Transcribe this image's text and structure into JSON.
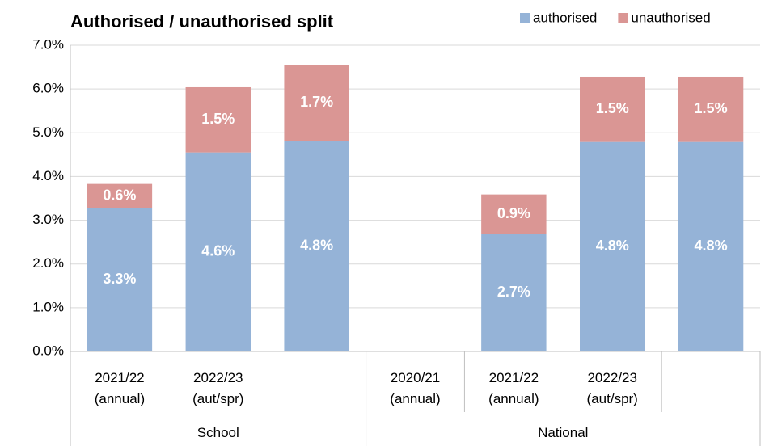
{
  "chart_data": {
    "type": "stacked_bar",
    "title": "Authorised / unauthorised split",
    "categories": [
      "2021/22\n(annual)",
      "2022/23\n(aut/spr)",
      null,
      "2020/21\n(annual)",
      "2021/22\n(annual)",
      "2022/23\n(aut/spr)",
      null
    ],
    "groups": [
      {
        "name": "School",
        "span": 3
      },
      {
        "name": "National",
        "span": 4
      }
    ],
    "series": [
      {
        "name": "authorised",
        "color": "#95b3d7",
        "values": [
          3.27,
          4.55,
          4.82,
          null,
          2.68,
          4.79,
          4.79
        ],
        "value_labels": [
          "3.3%",
          "4.6%",
          "4.8%",
          null,
          "2.7%",
          "4.8%",
          "4.8%"
        ]
      },
      {
        "name": "unauthorised",
        "color": "#da9694",
        "values": [
          0.56,
          1.49,
          1.72,
          null,
          0.91,
          1.49,
          1.49
        ],
        "value_labels": [
          "0.6%",
          "1.5%",
          "1.7%",
          null,
          "0.9%",
          "1.5%",
          "1.5%"
        ]
      }
    ],
    "ylim": [
      0,
      7
    ],
    "yticks": [
      {
        "value": 0,
        "label": "0.0%"
      },
      {
        "value": 1,
        "label": "1.0%"
      },
      {
        "value": 2,
        "label": "2.0%"
      },
      {
        "value": 3,
        "label": "3.0%"
      },
      {
        "value": 4,
        "label": "4.0%"
      },
      {
        "value": 5,
        "label": "5.0%"
      },
      {
        "value": 6,
        "label": "6.0%"
      },
      {
        "value": 7,
        "label": "7.0%"
      }
    ],
    "grid": true,
    "legend": "top-right"
  }
}
